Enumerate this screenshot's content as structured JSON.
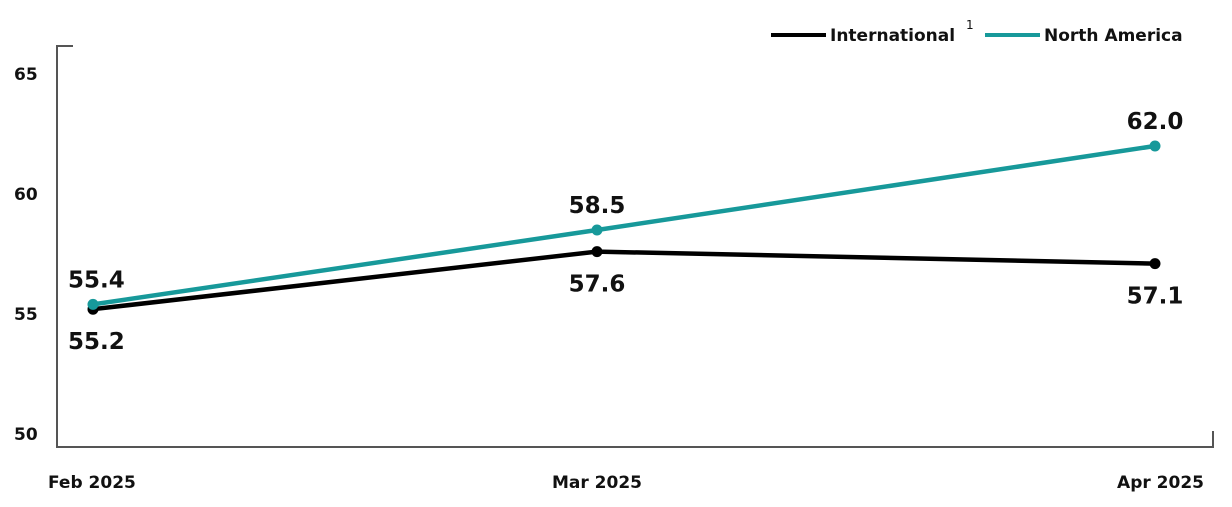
{
  "chart_data": {
    "type": "line",
    "categories": [
      "Feb 2025",
      "Mar 2025",
      "Apr 2025"
    ],
    "ylim": [
      50,
      65
    ],
    "yticks": [
      "50",
      "55",
      "60",
      "65"
    ],
    "grid": false,
    "legend_placement": "top-right",
    "series": [
      {
        "name": "International",
        "name_superscript": "1",
        "color": "#000000",
        "values": [
          55.2,
          57.6,
          57.1
        ],
        "labels": [
          "55.2",
          "57.6",
          "57.1"
        ],
        "label_position": "below"
      },
      {
        "name": "North America",
        "color": "#17999a",
        "values": [
          55.4,
          58.5,
          62.0
        ],
        "labels": [
          "55.4",
          "58.5",
          "62.0"
        ],
        "label_position": "above"
      }
    ]
  }
}
